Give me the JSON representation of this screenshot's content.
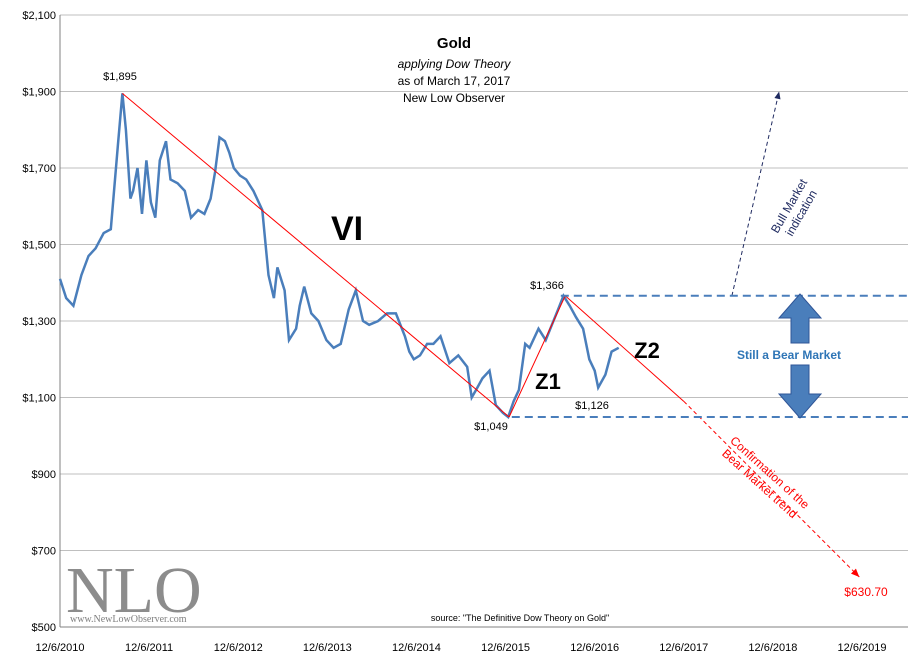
{
  "chart_data": {
    "type": "line",
    "title": "Gold",
    "subtitle_lines": [
      "applying Dow Theory",
      "as of March 17, 2017",
      "New Low Observer"
    ],
    "ylim": [
      500,
      2100
    ],
    "y_ticks": [
      "$500",
      "$700",
      "$900",
      "$1,100",
      "$1,300",
      "$1,500",
      "$1,700",
      "$1,900",
      "$2,100"
    ],
    "y_tick_values": [
      500,
      700,
      900,
      1100,
      1300,
      1500,
      1700,
      1900,
      2100
    ],
    "x_ticks": [
      "12/6/2010",
      "12/6/2011",
      "12/6/2012",
      "12/6/2013",
      "12/6/2014",
      "12/6/2015",
      "12/6/2016",
      "12/6/2017",
      "12/6/2018",
      "12/6/2019"
    ],
    "x_tick_years": [
      2010.93,
      2011.93,
      2012.93,
      2013.93,
      2014.93,
      2015.93,
      2016.93,
      2017.93,
      2018.93,
      2019.93
    ],
    "grid": "horizontal",
    "series": [
      {
        "color": "#4a7ebb",
        "x": [
          2010.93,
          2011.0,
          2011.08,
          2011.17,
          2011.25,
          2011.33,
          2011.42,
          2011.5,
          2011.58,
          2011.63,
          2011.67,
          2011.72,
          2011.75,
          2011.8,
          2011.85,
          2011.9,
          2011.95,
          2012.0,
          2012.05,
          2012.12,
          2012.17,
          2012.25,
          2012.33,
          2012.4,
          2012.48,
          2012.55,
          2012.62,
          2012.67,
          2012.72,
          2012.78,
          2012.83,
          2012.88,
          2012.95,
          2013.02,
          2013.1,
          2013.2,
          2013.27,
          2013.33,
          2013.37,
          2013.45,
          2013.5,
          2013.58,
          2013.62,
          2013.67,
          2013.75,
          2013.83,
          2013.92,
          2014.0,
          2014.08,
          2014.17,
          2014.25,
          2014.33,
          2014.4,
          2014.5,
          2014.6,
          2014.7,
          2014.8,
          2014.85,
          2014.9,
          2014.97,
          2015.05,
          2015.12,
          2015.2,
          2015.3,
          2015.4,
          2015.5,
          2015.55,
          2015.6,
          2015.67,
          2015.75,
          2015.82,
          2015.9,
          2015.96,
          2016.02,
          2016.08,
          2016.15,
          2016.2,
          2016.3,
          2016.38,
          2016.45,
          2016.52,
          2016.58,
          2016.65,
          2016.72,
          2016.8,
          2016.87,
          2016.93,
          2016.97,
          2017.05,
          2017.12,
          2017.2
        ],
        "y": [
          1410,
          1360,
          1340,
          1420,
          1470,
          1490,
          1530,
          1540,
          1760,
          1895,
          1800,
          1620,
          1640,
          1700,
          1580,
          1720,
          1610,
          1570,
          1720,
          1770,
          1670,
          1660,
          1640,
          1570,
          1590,
          1580,
          1620,
          1690,
          1780,
          1770,
          1740,
          1700,
          1680,
          1670,
          1640,
          1590,
          1420,
          1360,
          1440,
          1380,
          1250,
          1280,
          1340,
          1390,
          1320,
          1300,
          1250,
          1230,
          1240,
          1330,
          1380,
          1300,
          1290,
          1300,
          1320,
          1320,
          1260,
          1220,
          1200,
          1210,
          1240,
          1240,
          1260,
          1190,
          1210,
          1180,
          1100,
          1120,
          1150,
          1170,
          1080,
          1060,
          1049,
          1090,
          1120,
          1240,
          1230,
          1280,
          1250,
          1290,
          1330,
          1366,
          1340,
          1310,
          1280,
          1200,
          1170,
          1126,
          1160,
          1220,
          1230
        ]
      }
    ],
    "annotations": {
      "high_label": "$1,895",
      "high_value": [
        2011.63,
        1895
      ],
      "peak_label": "$1,366",
      "peak_value": [
        2016.6,
        1366
      ],
      "low_label": "$1,049",
      "low_value": [
        2015.97,
        1049
      ],
      "mid_low_label": "$1,126",
      "mid_low_value": [
        2016.88,
        1126
      ],
      "target_label": "$630.70",
      "target_value": [
        2019.9,
        630.7
      ],
      "wave_vi": "VI",
      "wave_z1": "Z1",
      "wave_z2": "Z2",
      "bull_text_1": "Bull Market",
      "bull_text_2": "indication",
      "bear_text": "Still a Bear Market",
      "confirm_text_1": "Confirmation of the",
      "confirm_text_2": "Bear Market trend",
      "resistance_level": 1366,
      "support_level": 1049
    },
    "source": "source: \"The Definitive Dow Theory on Gold\"",
    "watermark": "NLO",
    "watermark_url": "www.NewLowObserver.com"
  },
  "colors": {
    "series": "#4a7ebb",
    "trend_red": "#ff0000",
    "dashed_blue": "#4a7ebb",
    "navy_arrow": "#1f2a60",
    "bear_text": "#2e75b6",
    "big_arrow": "#4a7ebb"
  }
}
